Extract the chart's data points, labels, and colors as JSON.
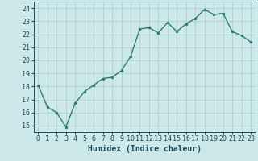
{
  "x": [
    0,
    1,
    2,
    3,
    4,
    5,
    6,
    7,
    8,
    9,
    10,
    11,
    12,
    13,
    14,
    15,
    16,
    17,
    18,
    19,
    20,
    21,
    22,
    23
  ],
  "y": [
    18.1,
    16.4,
    16.0,
    14.9,
    16.7,
    17.6,
    18.1,
    18.6,
    18.7,
    19.2,
    20.3,
    22.4,
    22.5,
    22.1,
    22.9,
    22.2,
    22.8,
    23.2,
    23.9,
    23.5,
    23.6,
    22.2,
    21.9,
    21.4
  ],
  "line_color": "#2e7d6e",
  "marker": ".",
  "markersize": 3,
  "linewidth": 1.0,
  "bg_color": "#cce8e8",
  "grid_color": "#aacccc",
  "xlabel": "Humidex (Indice chaleur)",
  "xlabel_fontsize": 7,
  "tick_fontsize": 6,
  "ylim": [
    14.5,
    24.5
  ],
  "yticks": [
    15,
    16,
    17,
    18,
    19,
    20,
    21,
    22,
    23,
    24
  ],
  "xticks": [
    0,
    1,
    2,
    3,
    4,
    5,
    6,
    7,
    8,
    9,
    10,
    11,
    12,
    13,
    14,
    15,
    16,
    17,
    18,
    19,
    20,
    21,
    22,
    23
  ],
  "xlim": [
    -0.5,
    23.5
  ],
  "tick_color": "#1a4a5a",
  "xlabel_color": "#1a4a5a"
}
